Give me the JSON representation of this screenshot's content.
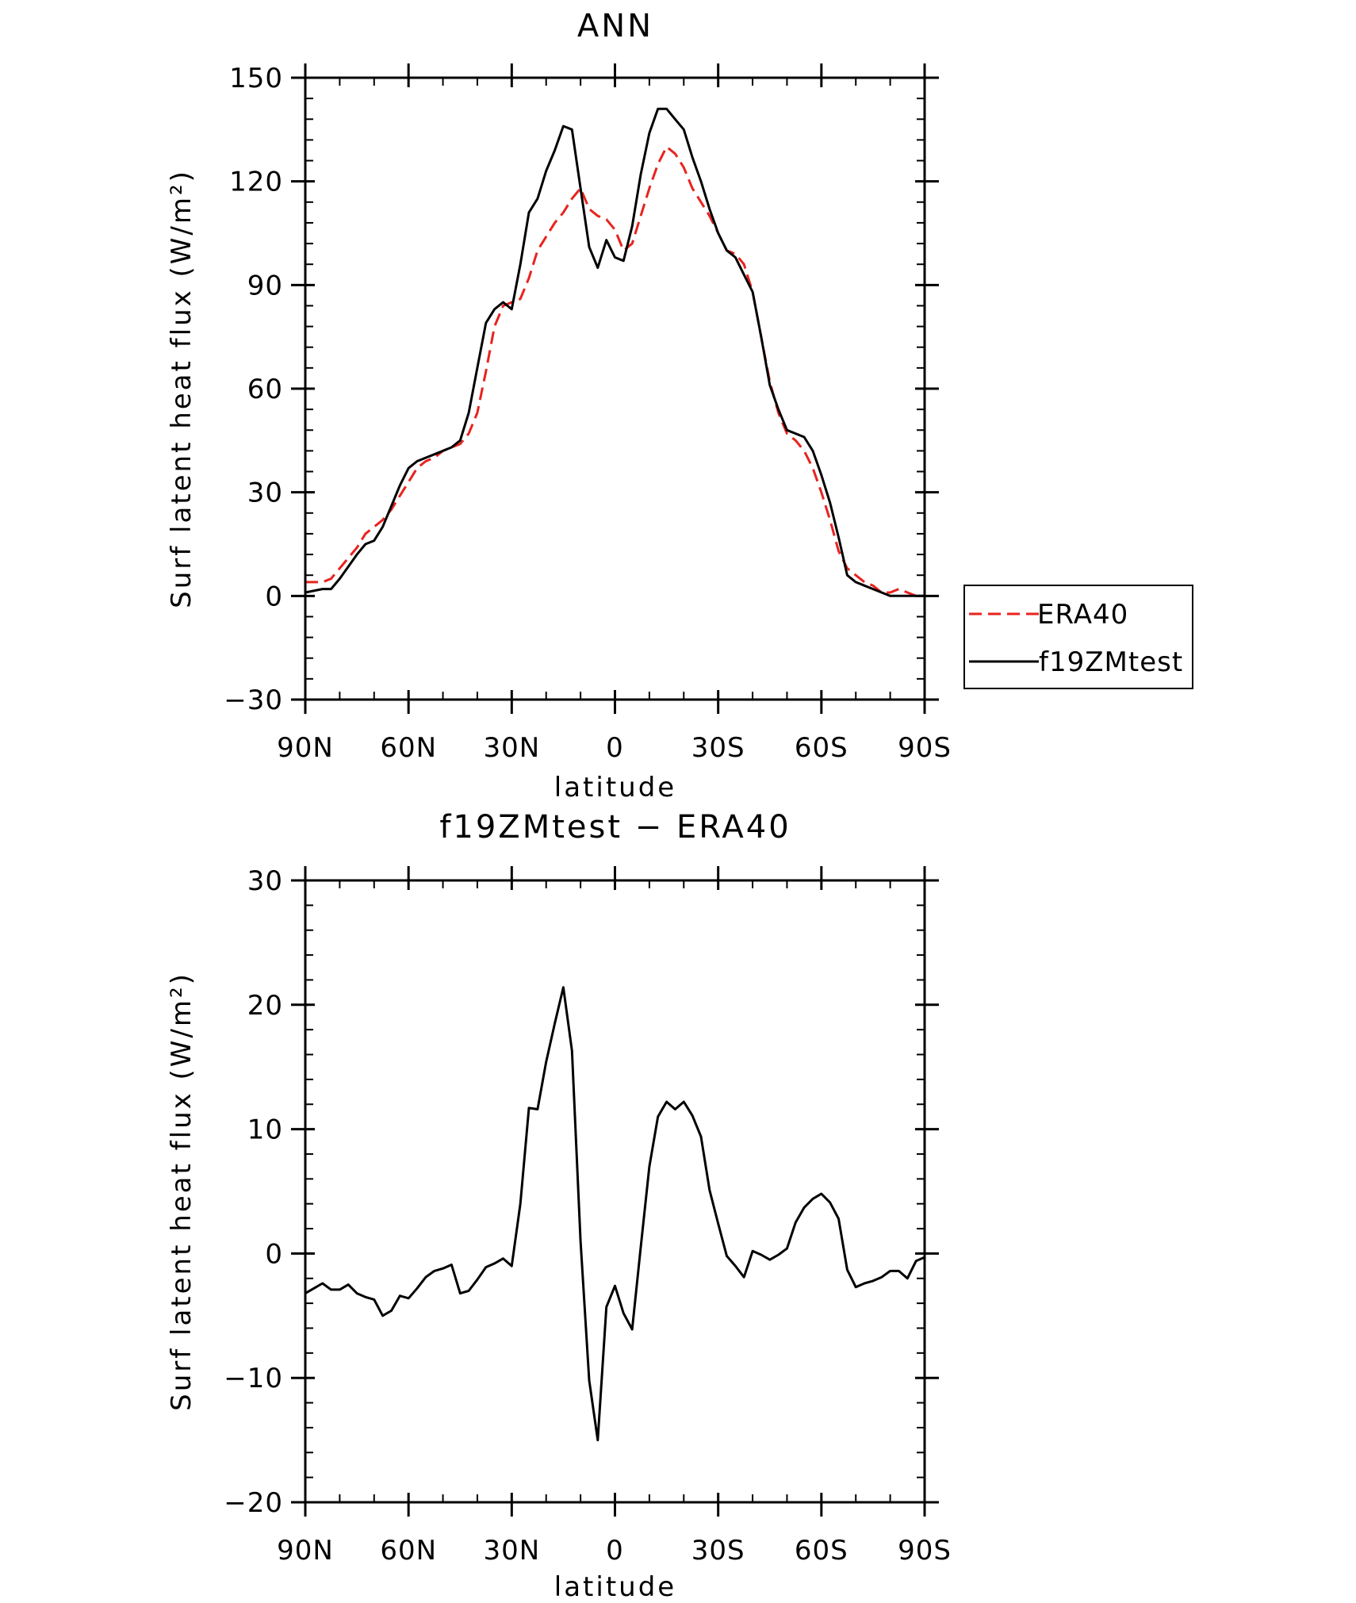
{
  "chart_data": [
    {
      "type": "line",
      "title": "ANN",
      "xlabel": "latitude",
      "ylabel": "Surf latent heat flux (W/m²)",
      "xlim": [
        90,
        -90
      ],
      "ylim": [
        -30,
        150
      ],
      "yticks": [
        -30,
        0,
        30,
        60,
        90,
        120,
        150
      ],
      "xticks": [
        90,
        60,
        30,
        0,
        -30,
        -60,
        -90
      ],
      "xtick_labels": [
        "90N",
        "60N",
        "30N",
        "0",
        "30S",
        "60S",
        "90S"
      ],
      "ytick_labels": [
        "−30",
        "0",
        "30",
        "60",
        "90",
        "120",
        "150"
      ],
      "legend": {
        "position": "right",
        "entries": [
          {
            "name": "ERA40",
            "color": "#e8231f",
            "style": "dashed"
          },
          {
            "name": "f19ZMtest",
            "color": "#000000",
            "style": "solid"
          }
        ]
      },
      "series": [
        {
          "name": "ERA40",
          "color": "#e8231f",
          "style": "dashed",
          "x": [
            90,
            85,
            82.5,
            80,
            75,
            72.5,
            70,
            67.5,
            65,
            62.5,
            60,
            57.5,
            55,
            52.5,
            50,
            47.5,
            45,
            42.5,
            40,
            37.5,
            35,
            32.5,
            30,
            27.5,
            25,
            22.5,
            20,
            17.5,
            15,
            12.5,
            10,
            7.5,
            5,
            2.5,
            0,
            -2.5,
            -5,
            -7.5,
            -10,
            -12.5,
            -15,
            -17.5,
            -20,
            -22.5,
            -25,
            -27.5,
            -30,
            -32.5,
            -35,
            -37.5,
            -40,
            -42.5,
            -45,
            -47.5,
            -50,
            -52.5,
            -55,
            -57.5,
            -60,
            -62.5,
            -65,
            -67.5,
            -70,
            -72.5,
            -75,
            -77.5,
            -80,
            -82.5,
            -85,
            -87.5,
            -90
          ],
          "values": [
            4,
            4,
            5,
            8,
            14,
            18,
            20,
            22,
            25,
            29,
            33,
            37,
            39,
            40,
            42,
            43,
            44,
            47,
            53,
            65,
            78,
            84,
            85,
            86,
            92,
            100,
            104,
            108,
            111,
            115,
            118,
            112,
            110,
            109,
            106,
            100,
            102,
            110,
            118,
            125,
            130,
            128,
            124,
            118,
            114,
            110,
            105,
            100,
            99,
            96,
            88,
            75,
            62,
            53,
            47,
            45,
            42,
            37,
            30,
            22,
            13,
            8,
            6,
            4,
            3,
            1,
            1,
            2,
            1,
            0,
            0
          ]
        },
        {
          "name": "f19ZMtest",
          "color": "#000000",
          "style": "solid",
          "x": [
            90,
            85,
            82.5,
            80,
            75,
            72.5,
            70,
            67.5,
            65,
            62.5,
            60,
            57.5,
            55,
            52.5,
            50,
            47.5,
            45,
            42.5,
            40,
            37.5,
            35,
            32.5,
            30,
            27.5,
            25,
            22.5,
            20,
            17.5,
            15,
            12.5,
            10,
            7.5,
            5,
            2.5,
            0,
            -2.5,
            -5,
            -7.5,
            -10,
            -12.5,
            -15,
            -17.5,
            -20,
            -22.5,
            -25,
            -27.5,
            -30,
            -32.5,
            -35,
            -37.5,
            -40,
            -42.5,
            -45,
            -47.5,
            -50,
            -52.5,
            -55,
            -57.5,
            -60,
            -62.5,
            -65,
            -67.5,
            -70,
            -72.5,
            -75,
            -77.5,
            -80,
            -82.5,
            -85,
            -87.5,
            -90
          ],
          "values": [
            1,
            2,
            2,
            5,
            12,
            15,
            16,
            20,
            26,
            32,
            37,
            39,
            40,
            41,
            42,
            43,
            45,
            53,
            66,
            79,
            83,
            85,
            83,
            96,
            111,
            115,
            123,
            129,
            136,
            135,
            118,
            101,
            95,
            103,
            98,
            97,
            107,
            122,
            134,
            141,
            141,
            138,
            135,
            127,
            120,
            112,
            105,
            100,
            98,
            93,
            88,
            75,
            61,
            54,
            48,
            47,
            46,
            42,
            35,
            27,
            17,
            6,
            4,
            3,
            2,
            1,
            0,
            0,
            0,
            0,
            0
          ]
        }
      ]
    },
    {
      "type": "line",
      "title": "f19ZMtest − ERA40",
      "xlabel": "latitude",
      "ylabel": "Surf latent heat flux (W/m²)",
      "xlim": [
        90,
        -90
      ],
      "ylim": [
        -20,
        30
      ],
      "yticks": [
        -20,
        -10,
        0,
        10,
        20,
        30
      ],
      "xticks": [
        90,
        60,
        30,
        0,
        -30,
        -60,
        -90
      ],
      "xtick_labels": [
        "90N",
        "60N",
        "30N",
        "0",
        "30S",
        "60S",
        "90S"
      ],
      "ytick_labels": [
        "−20",
        "−10",
        "0",
        "10",
        "20",
        "30"
      ],
      "series": [
        {
          "color": "#000000",
          "style": "solid",
          "x": [
            90,
            87.5,
            85,
            82.5,
            80,
            77.5,
            75,
            72.5,
            70,
            67.5,
            65,
            62.5,
            60,
            57.5,
            55,
            52.5,
            50,
            47.5,
            45,
            42.5,
            40,
            37.5,
            35,
            32.5,
            30,
            27.5,
            25,
            22.5,
            20,
            17.5,
            15,
            12.5,
            10,
            7.5,
            5,
            2.5,
            0,
            -2.5,
            -5,
            -7.5,
            -10,
            -12.5,
            -15,
            -17.5,
            -20,
            -22.5,
            -25,
            -27.5,
            -30,
            -32.5,
            -35,
            -37.5,
            -40,
            -42.5,
            -45,
            -47.5,
            -50,
            -52.5,
            -55,
            -57.5,
            -60,
            -62.5,
            -65,
            -67.5,
            -70,
            -72.5,
            -75,
            -77.5,
            -80,
            -82.5,
            -85,
            -87.5,
            -90
          ],
          "values": [
            -3.2,
            -2.8,
            -2.4,
            -2.9,
            -2.9,
            -2.5,
            -3.2,
            -3.5,
            -3.7,
            -5.0,
            -4.6,
            -3.4,
            -3.6,
            -2.8,
            -1.9,
            -1.4,
            -1.2,
            -0.9,
            -3.2,
            -3.0,
            -2.1,
            -1.1,
            -0.8,
            -0.4,
            -1.0,
            4.0,
            11.7,
            11.6,
            15.4,
            18.5,
            21.4,
            16.3,
            1.0,
            -10.2,
            -15.0,
            -4.3,
            -2.6,
            -4.8,
            -6.1,
            0.5,
            7.0,
            11.0,
            12.2,
            11.6,
            12.2,
            11.1,
            9.4,
            5.1,
            2.4,
            -0.2,
            -1.0,
            -1.9,
            0.2,
            -0.1,
            -0.5,
            -0.1,
            0.4,
            2.5,
            3.7,
            4.4,
            4.8,
            4.1,
            2.8,
            -1.3,
            -2.7,
            -2.4,
            -2.2,
            -1.9,
            -1.4,
            -1.4,
            -2.0,
            -0.6,
            -0.3
          ]
        }
      ]
    }
  ]
}
